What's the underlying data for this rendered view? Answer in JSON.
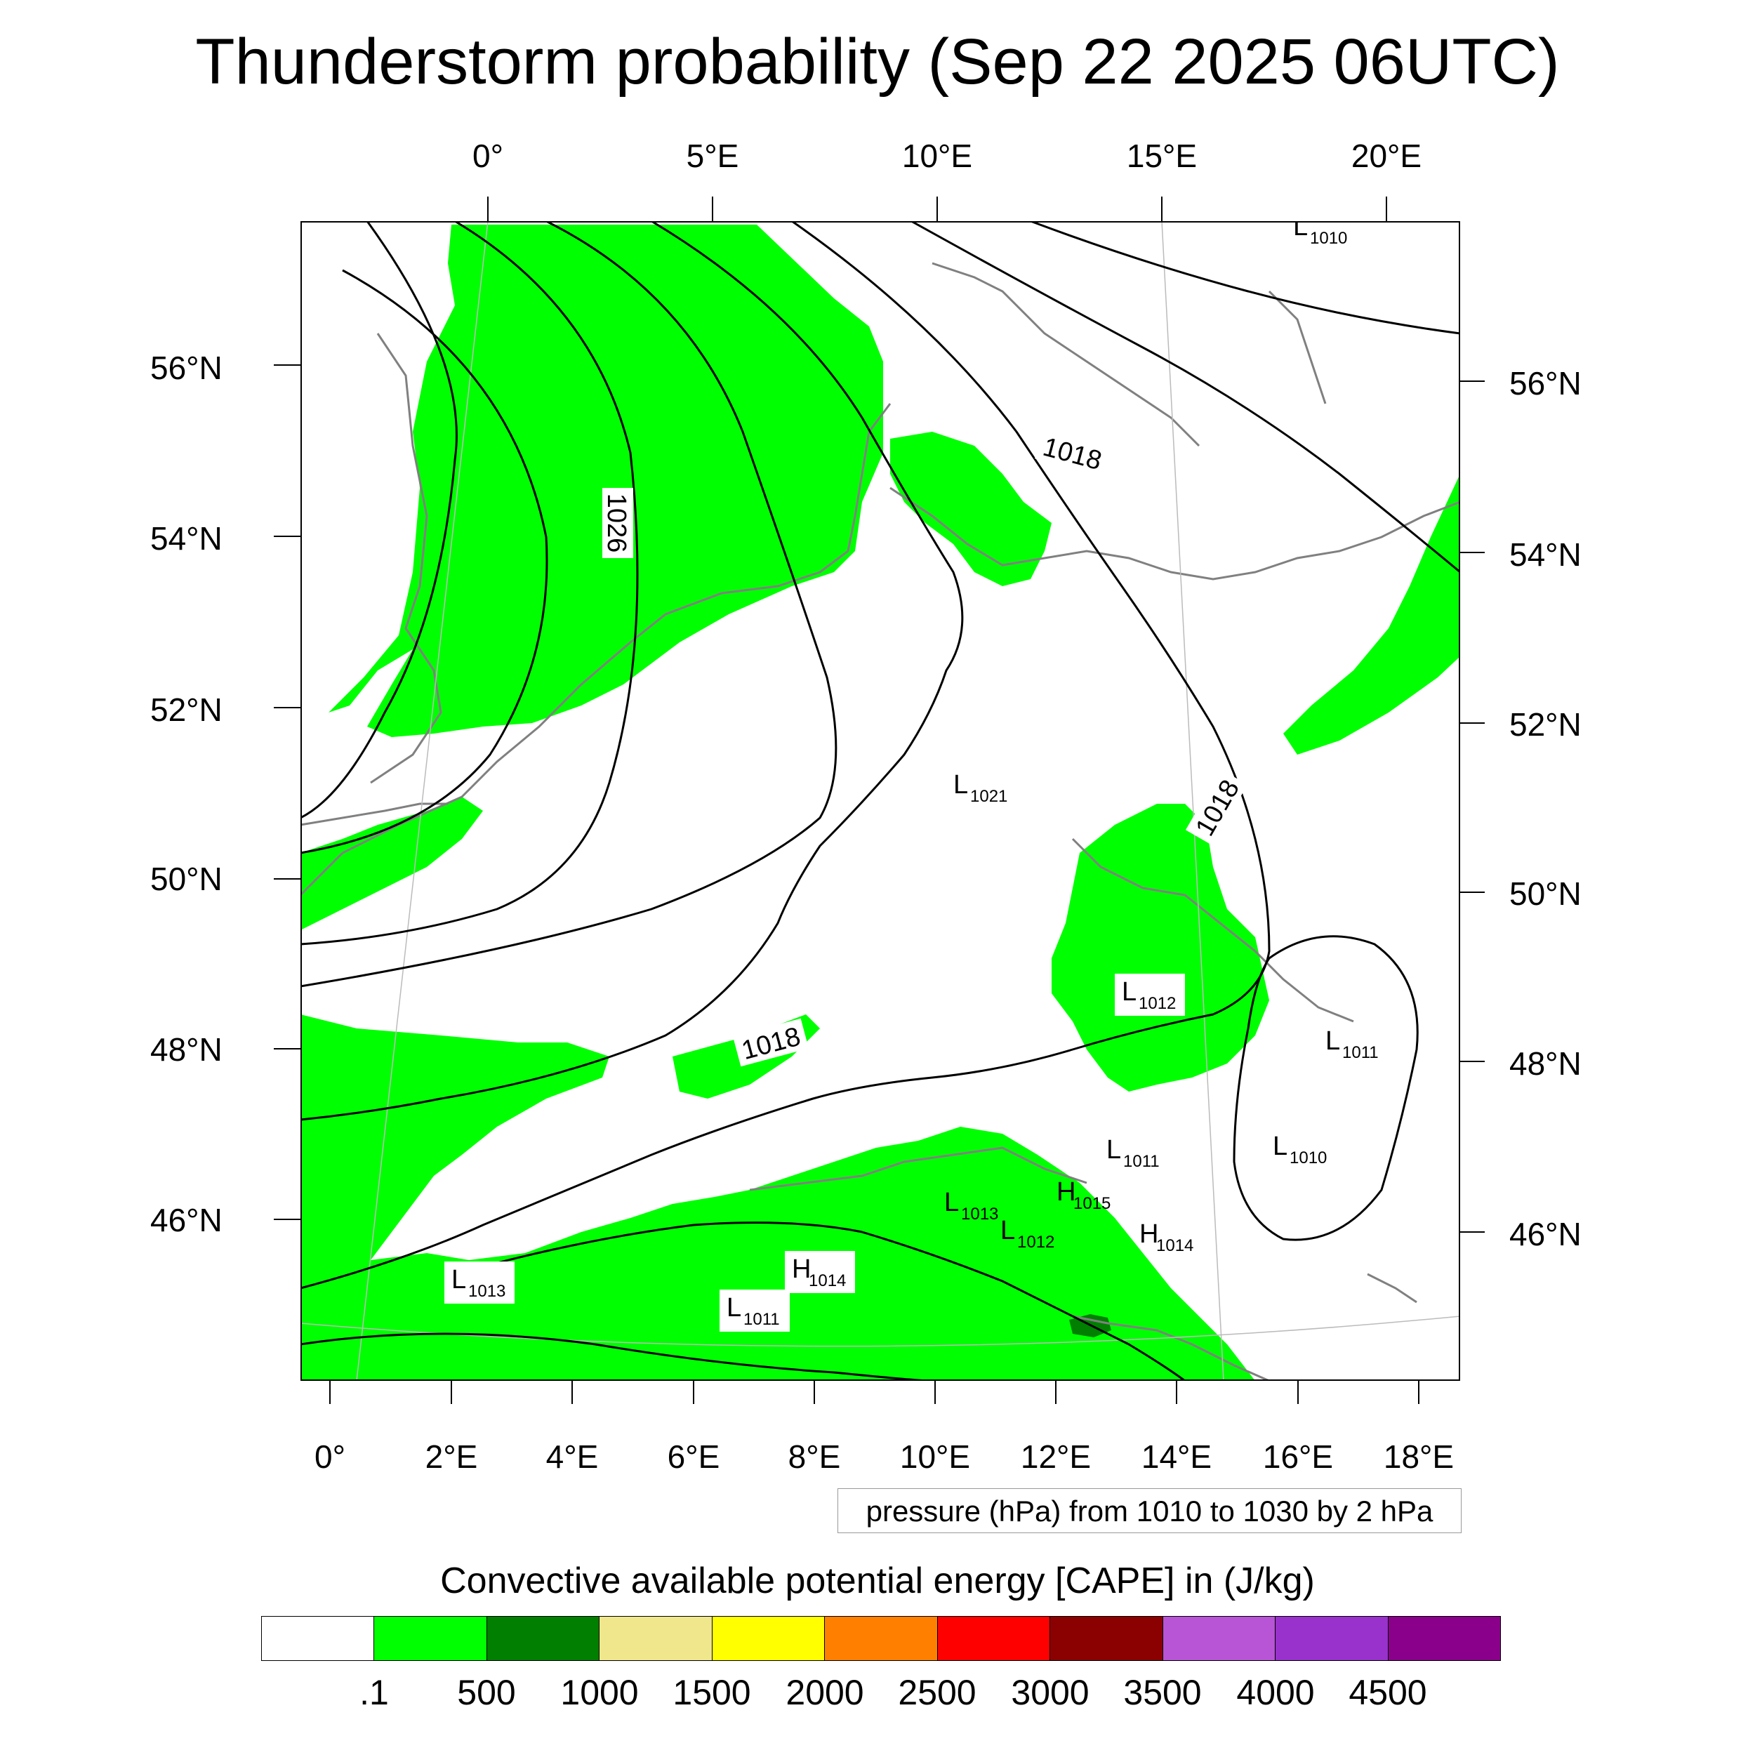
{
  "title": "Thunderstorm probability (Sep 22 2025 06UTC)",
  "top_lon_labels": [
    "0°",
    "5°E",
    "10°E",
    "15°E",
    "20°E"
  ],
  "bottom_lon_labels": [
    "0°",
    "2°E",
    "4°E",
    "6°E",
    "8°E",
    "10°E",
    "12°E",
    "14°E",
    "16°E",
    "18°E"
  ],
  "left_lat_labels": [
    "56°N",
    "54°N",
    "52°N",
    "50°N",
    "48°N",
    "46°N"
  ],
  "right_lat_labels": [
    "56°N",
    "54°N",
    "52°N",
    "50°N",
    "48°N",
    "46°N"
  ],
  "pressure_note": "pressure (hPa) from 1010 to 1030 by 2 hPa",
  "isobar_labels": [
    "1026",
    "1018",
    "1018",
    "1018"
  ],
  "pressure_centers": [
    {
      "type": "L",
      "value": "1010"
    },
    {
      "type": "L",
      "value": "1021"
    },
    {
      "type": "L",
      "value": "1012"
    },
    {
      "type": "L",
      "value": "1011"
    },
    {
      "type": "L",
      "value": "1010"
    },
    {
      "type": "L",
      "value": "1011"
    },
    {
      "type": "H",
      "value": "1015"
    },
    {
      "type": "L",
      "value": "1013"
    },
    {
      "type": "L",
      "value": "1012"
    },
    {
      "type": "H",
      "value": "1014"
    },
    {
      "type": "L",
      "value": "1013"
    },
    {
      "type": "H",
      "value": "1014"
    },
    {
      "type": "L",
      "value": "1011"
    }
  ],
  "colorbar": {
    "title": "Convective available potential energy [CAPE] in (J/kg)",
    "colors": [
      "#ffffff",
      "#00ff00",
      "#007f00",
      "#f0e68c",
      "#ffff00",
      "#ff8000",
      "#ff0000",
      "#8b0000",
      "#b855d6",
      "#9932cc",
      "#8b008b"
    ],
    "labels": [
      ".1",
      "500",
      "1000",
      "1500",
      "2000",
      "2500",
      "3000",
      "3500",
      "4000",
      "4500"
    ]
  },
  "colors": {
    "cape_green": "#00ff00",
    "cape_dark_green": "#007f00",
    "isobar": "#000000",
    "coastline": "#808080"
  }
}
